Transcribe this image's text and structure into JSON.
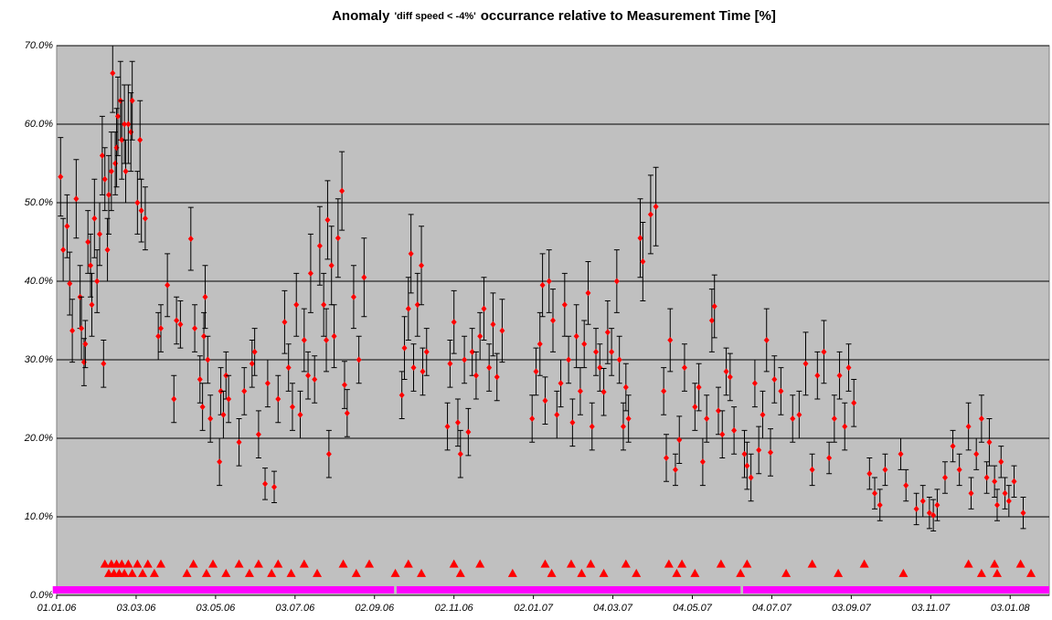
{
  "chart_data": {
    "type": "scatter",
    "title": [
      "Anomaly",
      "'diff speed < -4%'",
      "occurrance relative to Measurement Time [%]"
    ],
    "xlim": [
      0,
      762
    ],
    "xticks": [
      {
        "value": 0,
        "label": "01.01.06"
      },
      {
        "value": 61,
        "label": "03.03.06"
      },
      {
        "value": 122,
        "label": "03.05.06"
      },
      {
        "value": 183,
        "label": "03.07.06"
      },
      {
        "value": 244,
        "label": "02.09.06"
      },
      {
        "value": 305,
        "label": "02.11.06"
      },
      {
        "value": 366,
        "label": "02.01.07"
      },
      {
        "value": 427,
        "label": "04.03.07"
      },
      {
        "value": 488,
        "label": "04.05.07"
      },
      {
        "value": 549,
        "label": "04.07.07"
      },
      {
        "value": 610,
        "label": "03.09.07"
      },
      {
        "value": 671,
        "label": "03.11.07"
      },
      {
        "value": 732,
        "label": "03.01.08"
      }
    ],
    "ylim": [
      0,
      70
    ],
    "yticks": [
      {
        "value": 0,
        "label": "0.0%"
      },
      {
        "value": 10,
        "label": "10.0%"
      },
      {
        "value": 20,
        "label": "20.0%"
      },
      {
        "value": 30,
        "label": "30.0%"
      },
      {
        "value": 40,
        "label": "40.0%"
      },
      {
        "value": 50,
        "label": "50.0%"
      },
      {
        "value": 60,
        "label": "60.0%"
      },
      {
        "value": 70,
        "label": "70.0%"
      }
    ],
    "grid": true,
    "background": "#c0c0c0",
    "series": [
      {
        "marker": "diamond",
        "color": "#ff0000",
        "error_color": "#000000",
        "x": [
          3,
          5,
          8,
          10,
          12,
          15,
          18,
          19,
          21,
          22,
          24,
          26,
          27,
          29,
          31,
          33,
          35,
          36,
          37,
          39,
          40,
          42,
          43,
          45,
          46,
          47,
          49,
          50,
          52,
          53,
          55,
          57,
          58,
          62,
          64,
          65,
          68,
          78,
          80,
          85,
          90,
          92,
          95,
          103,
          106,
          110,
          112,
          113,
          114,
          116,
          118,
          125,
          126,
          128,
          130,
          132,
          140,
          144,
          150,
          152,
          155,
          160,
          162,
          167,
          170,
          175,
          178,
          181,
          184,
          187,
          190,
          193,
          195,
          198,
          202,
          205,
          207,
          208,
          209,
          211,
          213,
          216,
          219,
          221,
          223,
          228,
          232,
          236,
          265,
          267,
          270,
          272,
          274,
          277,
          280,
          281,
          284,
          300,
          302,
          305,
          308,
          310,
          313,
          316,
          319,
          322,
          325,
          328,
          332,
          335,
          338,
          342,
          365,
          368,
          371,
          373,
          375,
          378,
          381,
          384,
          387,
          390,
          393,
          396,
          399,
          402,
          405,
          408,
          411,
          414,
          417,
          420,
          423,
          426,
          430,
          432,
          435,
          437,
          439,
          448,
          450,
          456,
          460,
          466,
          468,
          471,
          475,
          478,
          482,
          490,
          493,
          496,
          499,
          503,
          505,
          508,
          511,
          514,
          517,
          520,
          528,
          530,
          533,
          536,
          539,
          542,
          545,
          548,
          551,
          556,
          565,
          570,
          575,
          580,
          584,
          589,
          593,
          597,
          601,
          605,
          608,
          612,
          624,
          628,
          632,
          636,
          648,
          652,
          660,
          665,
          670,
          673,
          676,
          682,
          688,
          693,
          700,
          702,
          706,
          710,
          714,
          716,
          720,
          722,
          725,
          728,
          731,
          735,
          742
        ],
        "values": [
          53.3,
          44,
          47,
          39.7,
          33.7,
          50.5,
          38,
          34,
          29.7,
          32,
          45,
          42,
          37,
          48,
          40,
          46,
          56,
          29.5,
          53,
          44,
          51,
          54,
          66.5,
          55,
          57,
          61,
          63,
          58,
          60,
          54,
          60,
          59,
          63,
          50,
          58,
          49,
          48,
          33,
          34,
          39.5,
          25,
          35,
          34.5,
          45.4,
          34,
          27.5,
          24,
          33,
          38,
          30,
          22.5,
          17,
          26,
          23,
          28,
          25,
          19.5,
          26,
          29.5,
          31,
          20.5,
          14.2,
          27,
          13.8,
          25,
          34.8,
          29,
          24,
          37,
          23,
          32.5,
          28,
          41,
          27.5,
          44.5,
          37,
          32.5,
          47.8,
          18,
          42,
          33,
          45.5,
          51.5,
          26.8,
          23.2,
          38,
          30,
          40.5,
          25.5,
          31.5,
          36.5,
          43.5,
          29,
          37,
          42,
          28.5,
          31,
          21.5,
          29.5,
          34.8,
          22,
          18,
          30,
          20.8,
          31,
          28,
          33,
          36.5,
          29,
          34.5,
          27.8,
          33.7,
          22.5,
          28.5,
          32,
          39.5,
          24.8,
          40,
          35,
          23,
          27,
          37,
          30,
          22,
          33,
          26,
          32,
          38.5,
          21.5,
          31,
          29,
          25.9,
          33.5,
          31,
          40,
          30,
          21.5,
          26.5,
          22.5,
          45.5,
          42.5,
          48.5,
          49.5,
          26,
          17.5,
          32.5,
          16,
          19.8,
          29,
          24,
          26.5,
          17,
          22.5,
          35,
          36.8,
          23.5,
          20.5,
          28.5,
          27.8,
          21,
          18,
          16.5,
          15,
          27,
          18.5,
          23,
          32.5,
          18.2,
          27.5,
          26,
          22.5,
          23,
          29.5,
          16,
          28,
          31,
          17.5,
          22.5,
          28,
          21.5,
          29,
          24.5,
          15.5,
          13,
          11.5,
          16,
          18,
          14,
          11,
          12,
          10.5,
          10.2,
          11.5,
          15,
          19,
          16,
          21.5,
          13,
          18,
          22.5,
          15,
          19.5,
          14.5,
          11.5,
          17,
          13,
          12,
          14.5,
          10.5
        ],
        "errors": [
          5,
          4,
          4,
          4,
          4,
          5,
          4,
          4,
          3,
          3,
          4,
          4,
          4,
          5,
          4,
          4,
          5,
          3,
          4,
          4,
          5,
          5,
          5,
          4,
          5,
          5,
          5,
          5,
          5,
          4,
          5,
          5,
          5,
          4,
          5,
          4,
          4,
          3,
          3,
          4,
          3,
          3,
          3,
          4,
          3,
          3,
          3,
          3,
          4,
          3,
          3,
          3,
          3,
          3,
          3,
          3,
          3,
          3,
          3,
          3,
          3,
          2,
          3,
          2,
          3,
          4,
          3,
          3,
          4,
          3,
          4,
          3,
          5,
          3,
          5,
          4,
          4,
          5,
          3,
          5,
          4,
          5,
          5,
          3,
          3,
          4,
          3,
          5,
          3,
          4,
          4,
          5,
          3,
          4,
          5,
          3,
          3,
          3,
          3,
          4,
          3,
          3,
          3,
          3,
          3,
          3,
          3,
          4,
          3,
          4,
          3,
          4,
          3,
          3,
          4,
          4,
          3,
          4,
          4,
          3,
          3,
          4,
          3,
          3,
          4,
          3,
          3,
          4,
          3,
          3,
          3,
          3,
          4,
          3,
          4,
          3,
          3,
          3,
          3,
          5,
          5,
          5,
          5,
          3,
          3,
          4,
          2,
          3,
          3,
          3,
          3,
          3,
          3,
          4,
          4,
          3,
          3,
          3,
          3,
          3,
          3,
          3,
          3,
          3,
          3,
          3,
          4,
          3,
          3,
          3,
          3,
          3,
          4,
          2,
          3,
          4,
          2,
          3,
          3,
          3,
          3,
          3,
          2,
          2,
          2,
          2,
          2,
          2,
          2,
          2,
          2,
          2,
          2,
          2,
          2,
          2,
          3,
          2,
          2,
          3,
          2,
          3,
          2,
          2,
          2,
          2,
          2,
          2,
          2
        ]
      },
      {
        "marker": "triangle",
        "color": "#ff0000",
        "x": [
          37,
          40,
          42,
          44,
          46,
          48,
          50,
          52,
          55,
          58,
          62,
          66,
          70,
          75,
          80,
          100,
          105,
          115,
          120,
          130,
          140,
          148,
          155,
          165,
          170,
          180,
          190,
          200,
          220,
          230,
          240,
          260,
          270,
          280,
          305,
          310,
          325,
          350,
          375,
          380,
          395,
          403,
          410,
          420,
          437,
          445,
          470,
          476,
          480,
          490,
          510,
          525,
          530,
          560,
          580,
          600,
          620,
          650,
          700,
          710,
          720,
          722,
          740,
          748
        ],
        "values": [
          4,
          2.8,
          4,
          2.8,
          4,
          2.8,
          4,
          2.8,
          4,
          2.8,
          4,
          2.8,
          4,
          2.8,
          4,
          2.8,
          4,
          2.8,
          4,
          2.8,
          4,
          2.8,
          4,
          2.8,
          4,
          2.8,
          4,
          2.8,
          4,
          2.8,
          4,
          2.8,
          4,
          2.8,
          4,
          2.8,
          4,
          2.8,
          4,
          2.8,
          4,
          2.8,
          4,
          2.8,
          4,
          2.8,
          4,
          2.8,
          4,
          2.8,
          4,
          2.8,
          4,
          2.8,
          4,
          2.8,
          4,
          2.8,
          4,
          2.8,
          4,
          2.8,
          4,
          2.8
        ]
      },
      {
        "marker": "line",
        "color": "#ff00ff",
        "x": [
          -3,
          259,
          260,
          261,
          525,
          526,
          527,
          762
        ],
        "values": [
          0.7,
          0.7,
          null,
          0.7,
          0.7,
          null,
          0.7,
          0.7
        ]
      }
    ]
  }
}
